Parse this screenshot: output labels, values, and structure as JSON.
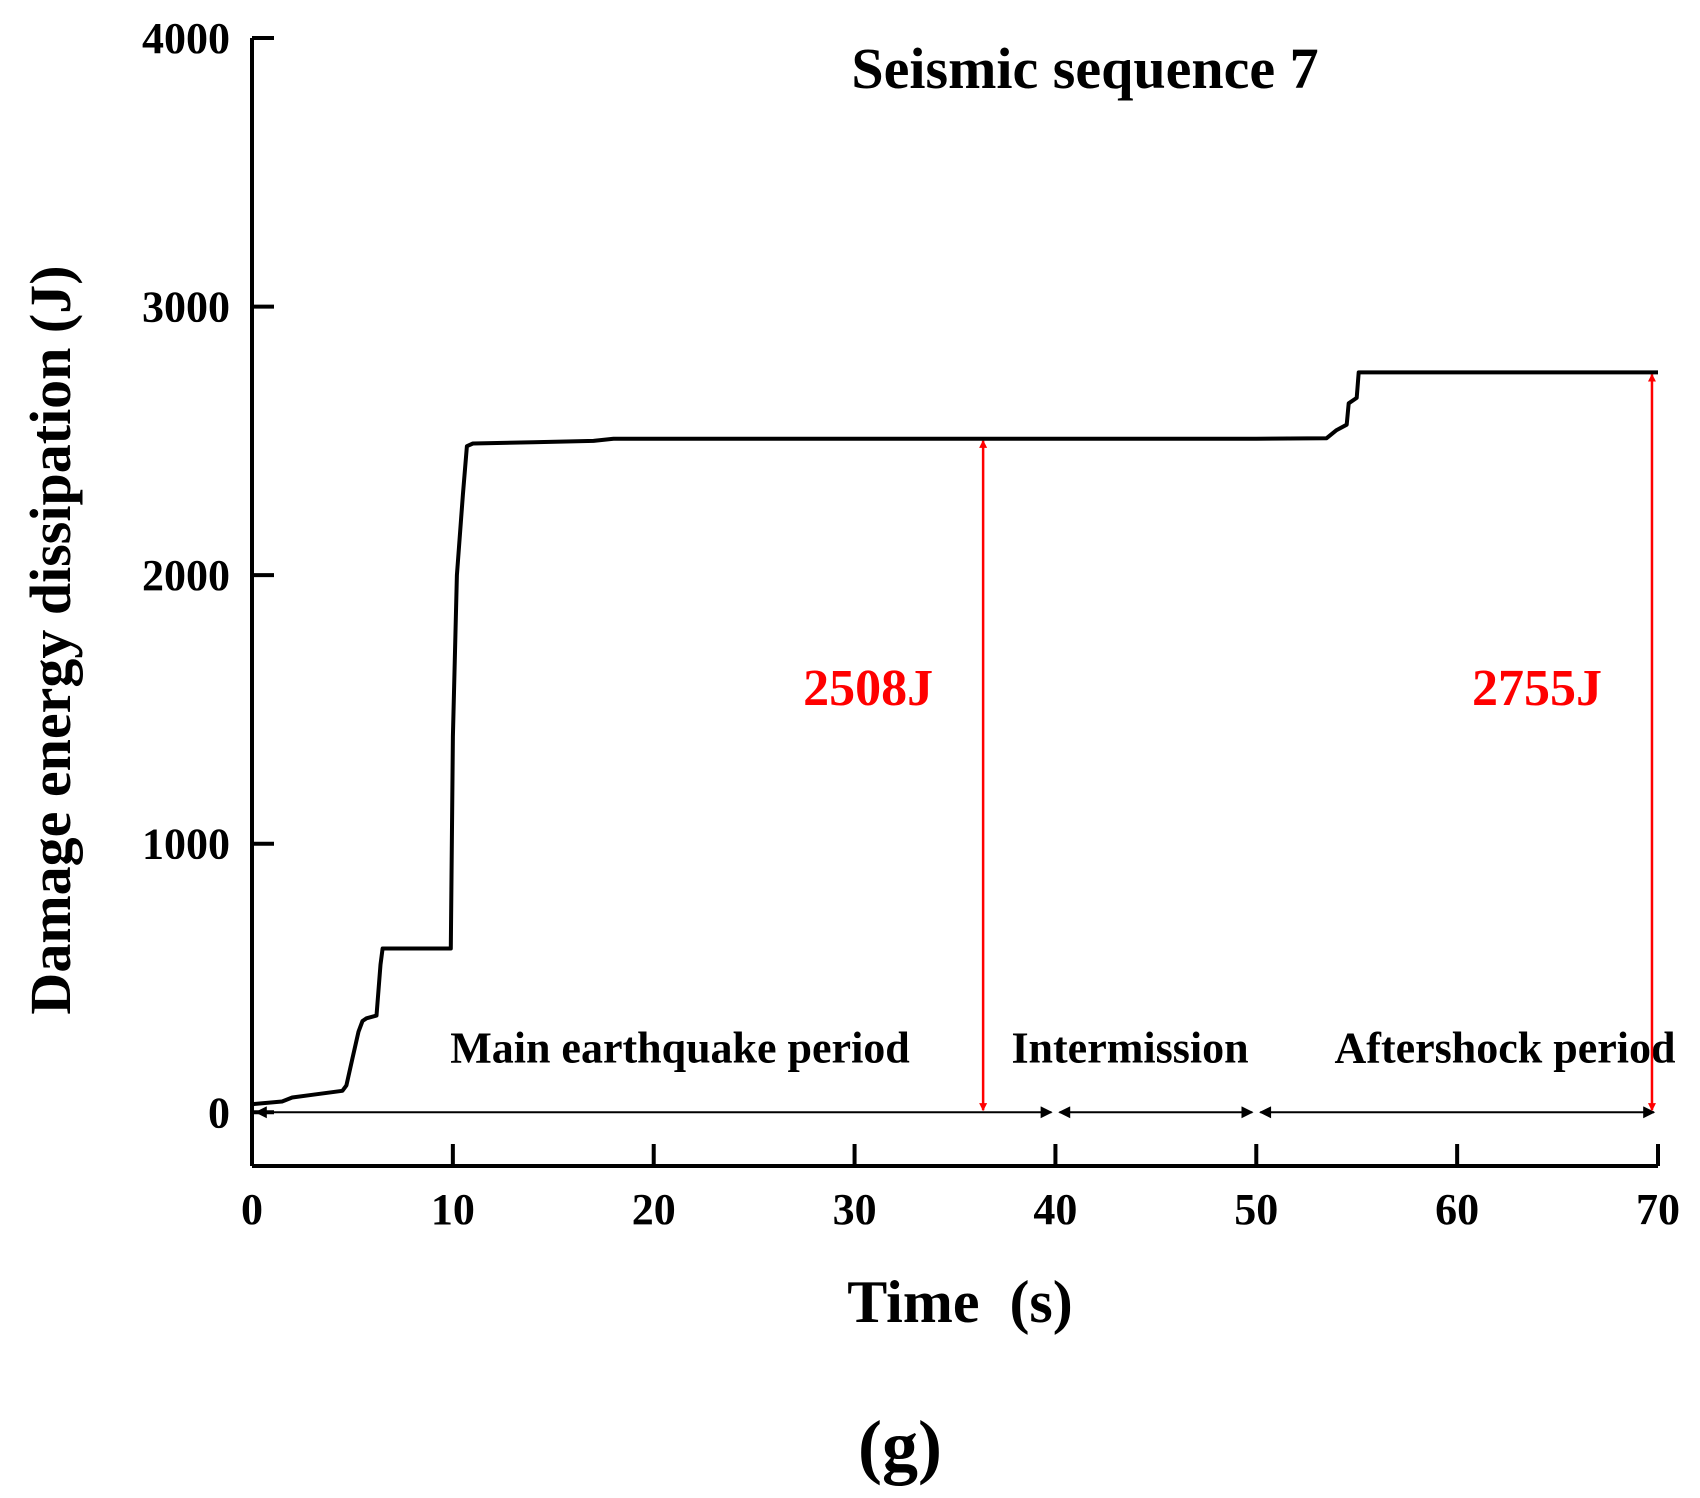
{
  "chart_data": {
    "type": "line",
    "title": "Seismic sequence 7",
    "xlabel": "Time  (s)",
    "ylabel": "Damage energy dissipation (J)",
    "panel_label": "(g)",
    "xlim": [
      0,
      70
    ],
    "ylim": [
      -200,
      4000
    ],
    "xticks": [
      0,
      10,
      20,
      30,
      40,
      50,
      60,
      70
    ],
    "yticks": [
      0,
      1000,
      2000,
      3000,
      4000
    ],
    "grid": false,
    "series": [
      {
        "color": "#000000",
        "x": [
          0,
          1.5,
          2,
          3,
          4.5,
          4.7,
          5,
          5.3,
          5.5,
          5.7,
          6.2,
          6.4,
          6.5,
          8,
          9.9,
          10.0,
          10.2,
          10.4,
          10.5,
          10.7,
          11,
          14,
          17,
          18,
          30,
          40,
          50,
          53.5,
          54,
          54.5,
          54.6,
          55,
          55.1,
          60,
          70
        ],
        "y": [
          30,
          40,
          55,
          65,
          80,
          100,
          200,
          300,
          340,
          350,
          360,
          550,
          610,
          610,
          610,
          1400,
          2000,
          2200,
          2300,
          2480,
          2490,
          2495,
          2500,
          2508,
          2508,
          2508,
          2508,
          2510,
          2540,
          2560,
          2640,
          2660,
          2755,
          2755,
          2755
        ]
      }
    ],
    "annotations": [
      {
        "text": "2508J",
        "x": 36.4,
        "value": 2508,
        "color": "#ff0000"
      },
      {
        "text": "2755J",
        "x": 69.7,
        "value": 2755,
        "color": "#ff0000"
      }
    ],
    "periods": [
      {
        "label": "Main earthquake period",
        "start": 0,
        "end": 40
      },
      {
        "label": "Intermission",
        "start": 40,
        "end": 50
      },
      {
        "label": "Aftershock period",
        "start": 50,
        "end": 70
      }
    ]
  }
}
